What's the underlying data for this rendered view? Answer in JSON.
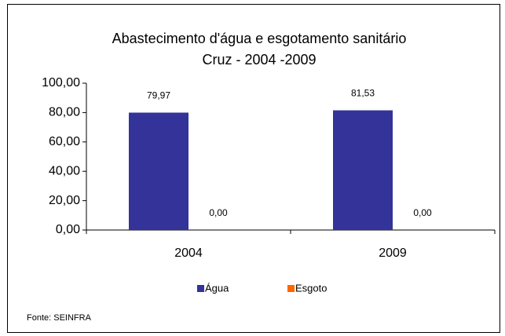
{
  "chart_data": {
    "type": "bar",
    "title": "Abastecimento d'água e esgotamento sanitário",
    "subtitle": "Cruz - 2004 -2009",
    "categories": [
      "2004",
      "2009"
    ],
    "series": [
      {
        "name": "Água",
        "color": "#333399",
        "values": [
          79.97,
          81.53
        ],
        "value_labels": [
          "79,97",
          "81,53"
        ]
      },
      {
        "name": "Esgoto",
        "color": "#ff6600",
        "values": [
          0,
          0
        ],
        "value_labels": [
          "0,00",
          "0,00"
        ]
      }
    ],
    "ylim": [
      0,
      100
    ],
    "yticks": [
      {
        "value": 0,
        "label": "0,00"
      },
      {
        "value": 20,
        "label": "20,00"
      },
      {
        "value": 40,
        "label": "40,00"
      },
      {
        "value": 60,
        "label": "60,00"
      },
      {
        "value": 80,
        "label": "80,00"
      },
      {
        "value": 100,
        "label": "100,00"
      }
    ],
    "grid": false,
    "legend": "bottom",
    "source": "Fonte: SEINFRA"
  }
}
